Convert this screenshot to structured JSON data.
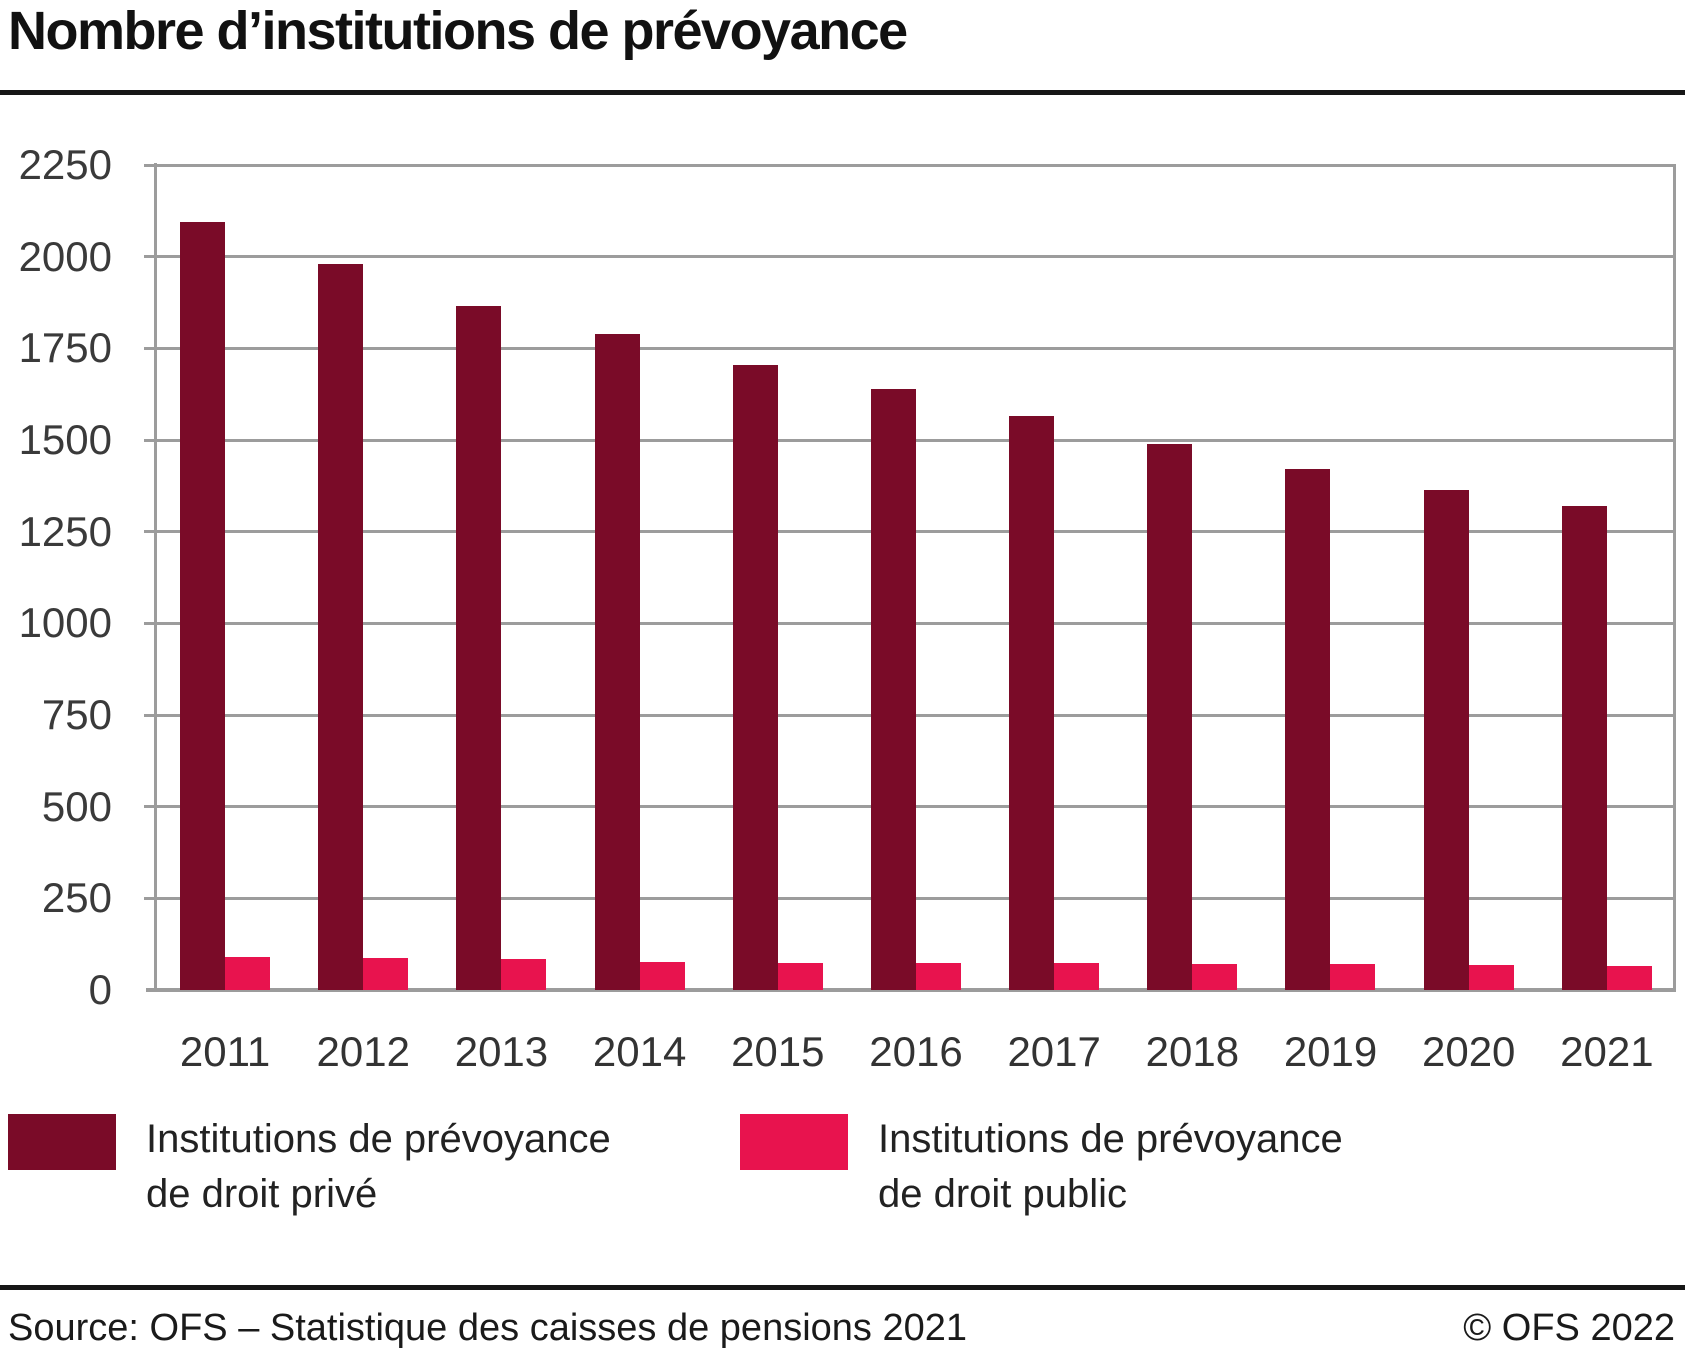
{
  "title": "Nombre d’institutions de prévoyance",
  "legend": {
    "items": [
      {
        "line1": "Institutions de prévoyance",
        "line2": "de droit privé",
        "color": "#7a0b28"
      },
      {
        "line1": "Institutions de prévoyance",
        "line2": "de droit public",
        "color": "#e8134e"
      }
    ]
  },
  "footer": {
    "source": "Source: OFS – Statistique des caisses de pensions 2021",
    "copyright": "© OFS 2022"
  },
  "colors": {
    "private": "#7a0b28",
    "public": "#e8134e",
    "grid": "#9c9c9c",
    "rule": "#161616"
  },
  "chart_data": {
    "type": "bar",
    "title": "Nombre d’institutions de prévoyance",
    "categories": [
      "2011",
      "2012",
      "2013",
      "2014",
      "2015",
      "2016",
      "2017",
      "2018",
      "2019",
      "2020",
      "2021"
    ],
    "series": [
      {
        "name": "Institutions de prévoyance de droit privé",
        "color": "#7a0b28",
        "values": [
          2095,
          1980,
          1865,
          1790,
          1705,
          1640,
          1565,
          1490,
          1420,
          1365,
          1320
        ]
      },
      {
        "name": "Institutions de prévoyance de droit public",
        "color": "#e8134e",
        "values": [
          90,
          88,
          85,
          77,
          74,
          74,
          73,
          70,
          70,
          68,
          66
        ]
      }
    ],
    "xlabel": "",
    "ylabel": "",
    "ylim": [
      0,
      2250
    ],
    "yticks": [
      0,
      250,
      500,
      750,
      1000,
      1250,
      1500,
      1750,
      2000,
      2250
    ],
    "grid": true,
    "legend_position": "bottom"
  }
}
